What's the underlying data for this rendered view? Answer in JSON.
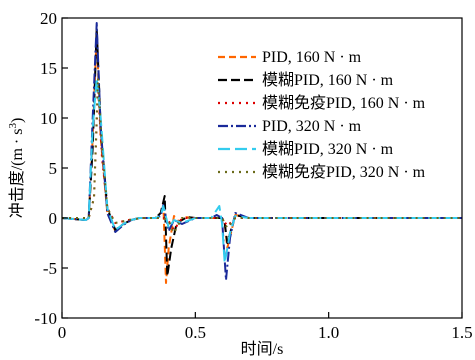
{
  "chart_data": {
    "type": "line",
    "xlabel": "时间/s",
    "ylabel": "冲击度/(m · s⁻³)",
    "ylabel_main": "冲击度/(m · s",
    "ylabel_sup": "3",
    "ylabel_end": ")",
    "xlim": [
      0,
      1.5
    ],
    "ylim": [
      -10,
      20
    ],
    "xticks": [
      0,
      0.5,
      1.0,
      1.5
    ],
    "xtick_labels": [
      "0",
      "0.5",
      "1.0",
      "1.5"
    ],
    "yticks": [
      -10,
      -5,
      0,
      5,
      10,
      15,
      20
    ],
    "ytick_labels": [
      "-10",
      "-5",
      "0",
      "5",
      "10",
      "15",
      "20"
    ],
    "grid": false,
    "legend_position": "top-right",
    "series": [
      {
        "name": "PID, 160 N · m",
        "color": "#FF6600",
        "dash": "7,4",
        "x": [
          0,
          0.09,
          0.1,
          0.115,
          0.13,
          0.145,
          0.17,
          0.2,
          0.23,
          0.26,
          0.29,
          0.32,
          0.35,
          0.37,
          0.38,
          0.39,
          0.4,
          0.42,
          0.44,
          0.46,
          0.5,
          0.55,
          0.6,
          0.61,
          0.62,
          0.65,
          0.7,
          1.0,
          1.5
        ],
        "y": [
          0,
          -0.2,
          0,
          8,
          18.5,
          8,
          0.5,
          -1.3,
          -0.6,
          -0.2,
          0,
          0,
          0,
          0.5,
          1.5,
          -6.5,
          -3,
          0.2,
          -0.4,
          0.1,
          0,
          0,
          0,
          -0.5,
          -3,
          0.3,
          0,
          0,
          0
        ]
      },
      {
        "name": "模糊PID, 160 N · m",
        "color": "#000000",
        "dash": "9,4",
        "x": [
          0,
          0.09,
          0.1,
          0.115,
          0.13,
          0.145,
          0.17,
          0.2,
          0.23,
          0.26,
          0.29,
          0.32,
          0.35,
          0.37,
          0.385,
          0.395,
          0.41,
          0.43,
          0.45,
          0.47,
          0.5,
          0.55,
          0.6,
          0.61,
          0.62,
          0.65,
          0.7,
          1.0,
          1.5
        ],
        "y": [
          0,
          -0.2,
          0,
          7,
          19,
          9,
          1,
          -1.2,
          -0.6,
          -0.2,
          0,
          0,
          0,
          0.5,
          2.2,
          -5.8,
          -3,
          -0.5,
          -0.2,
          0.1,
          0,
          0,
          0,
          -0.5,
          -2.5,
          0.3,
          0,
          0,
          0
        ]
      },
      {
        "name": "模糊免疫PID, 160 N · m",
        "color": "#DD0000",
        "dash": "2,5",
        "x": [
          0,
          0.1,
          0.12,
          0.135,
          0.15,
          0.17,
          0.2,
          0.25,
          0.3,
          0.38,
          0.4,
          0.42,
          0.45,
          0.5,
          0.6,
          0.62,
          0.65,
          1.0,
          1.5
        ],
        "y": [
          0,
          0,
          2,
          13,
          6,
          1,
          -0.5,
          -0.2,
          0,
          0,
          -0.3,
          -1.2,
          0,
          0,
          0,
          -0.8,
          0,
          0,
          0
        ]
      },
      {
        "name": "PID, 320 N · m",
        "color": "#1A2A9A",
        "dash": "10,3,2,3",
        "x": [
          0,
          0.09,
          0.1,
          0.115,
          0.13,
          0.145,
          0.17,
          0.2,
          0.23,
          0.26,
          0.29,
          0.32,
          0.35,
          0.37,
          0.38,
          0.4,
          0.42,
          0.45,
          0.5,
          0.56,
          0.58,
          0.6,
          0.615,
          0.63,
          0.65,
          0.7,
          1.0,
          1.5
        ],
        "y": [
          0,
          -0.2,
          0,
          10,
          19.5,
          9,
          0.5,
          -1.4,
          -0.7,
          -0.2,
          0,
          0,
          0,
          0.2,
          1.3,
          -1.3,
          -0.2,
          -0.6,
          0,
          0,
          0.3,
          0,
          -6.2,
          -2,
          0.5,
          0,
          0,
          0
        ]
      },
      {
        "name": "模糊PID, 320 N · m",
        "color": "#33CCEE",
        "dash": "12,5",
        "x": [
          0,
          0.09,
          0.1,
          0.115,
          0.13,
          0.145,
          0.17,
          0.2,
          0.23,
          0.26,
          0.29,
          0.32,
          0.35,
          0.37,
          0.38,
          0.4,
          0.42,
          0.45,
          0.5,
          0.56,
          0.59,
          0.6,
          0.61,
          0.63,
          0.65,
          0.7,
          1.0,
          1.5
        ],
        "y": [
          0,
          -0.2,
          0,
          9,
          14,
          10,
          1,
          -1.2,
          -0.6,
          -0.2,
          0,
          0,
          0,
          0.2,
          1.2,
          -1,
          -0.2,
          -0.5,
          0,
          0,
          1.2,
          -0.5,
          -4.5,
          -1.5,
          0.2,
          0,
          0,
          0
        ]
      },
      {
        "name": "模糊免疫PID, 320 N · m",
        "color": "#6B6B1A",
        "dash": "2,5",
        "x": [
          0,
          0.1,
          0.12,
          0.135,
          0.15,
          0.17,
          0.2,
          0.25,
          0.3,
          0.38,
          0.4,
          0.42,
          0.45,
          0.5,
          0.6,
          0.62,
          0.65,
          1.0,
          1.5
        ],
        "y": [
          0,
          0,
          2,
          14,
          7,
          1,
          -0.5,
          -0.2,
          0,
          0,
          -0.3,
          -1.5,
          0,
          0,
          0,
          -1,
          0,
          0,
          0
        ]
      }
    ]
  }
}
